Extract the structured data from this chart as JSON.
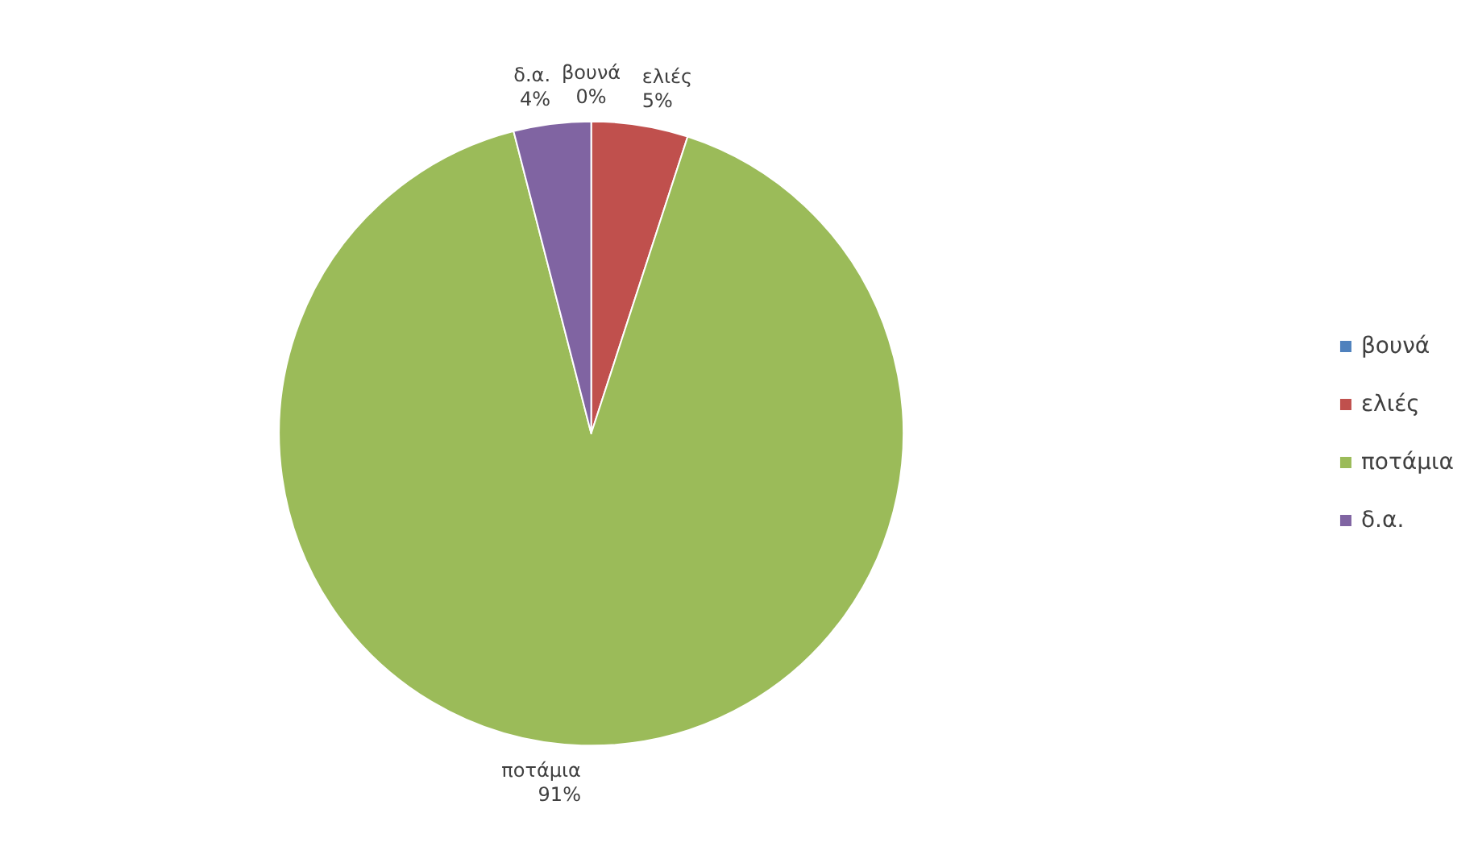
{
  "chart_data": {
    "type": "pie",
    "categories": [
      "βουνά",
      "ελιές",
      "ποτάμια",
      "δ.α."
    ],
    "values": [
      0,
      5,
      91,
      4
    ],
    "colors": [
      "#4f81bd",
      "#c0504d",
      "#9bbb59",
      "#8064a2"
    ],
    "value_labels": [
      "0%",
      "5%",
      "91%",
      "4%"
    ],
    "legend": "right"
  }
}
